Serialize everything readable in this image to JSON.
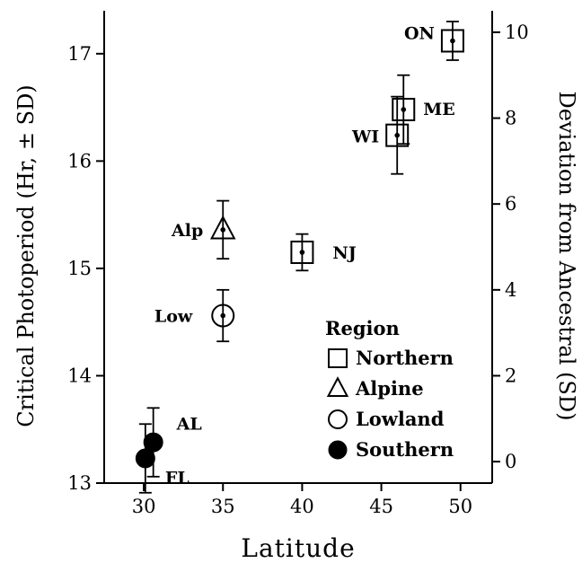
{
  "chart_data": {
    "type": "scatter",
    "xlabel": "Latitude",
    "ylabel": "Critical Photoperiod (Hr, ± SD)",
    "y2label": "Deviation from Ancestral (SD)",
    "xlim": [
      27.5,
      52
    ],
    "ylim": [
      13,
      17.4
    ],
    "y2lim": [
      -0.5,
      10.5
    ],
    "xticks": [
      "30",
      "35",
      "40",
      "45",
      "50"
    ],
    "yticks": [
      "13",
      "14",
      "15",
      "16",
      "17"
    ],
    "y2ticks": [
      "0",
      "2",
      "4",
      "6",
      "8",
      "10"
    ],
    "legend": {
      "title": "Region",
      "position": "lower-right",
      "entries": [
        {
          "name": "Northern",
          "marker": "square"
        },
        {
          "name": "Alpine",
          "marker": "triangle"
        },
        {
          "name": "Lowland",
          "marker": "circle-open"
        },
        {
          "name": "Southern",
          "marker": "circle-filled"
        }
      ]
    },
    "points": [
      {
        "label": "ON",
        "x": 49.5,
        "y": 17.12,
        "sd": 0.18,
        "region": "Northern"
      },
      {
        "label": "ME",
        "x": 46.4,
        "y": 16.48,
        "sd": 0.32,
        "region": "Northern"
      },
      {
        "label": "WI",
        "x": 46.0,
        "y": 16.24,
        "sd": 0.36,
        "region": "Northern"
      },
      {
        "label": "NJ",
        "x": 40.0,
        "y": 15.15,
        "sd": 0.17,
        "region": "Northern"
      },
      {
        "label": "Alp",
        "x": 35.0,
        "y": 15.36,
        "sd": 0.27,
        "region": "Alpine"
      },
      {
        "label": "Low",
        "x": 35.0,
        "y": 14.56,
        "sd": 0.24,
        "region": "Lowland"
      },
      {
        "label": "AL",
        "x": 30.6,
        "y": 13.38,
        "sd": 0.32,
        "region": "Southern"
      },
      {
        "label": "FL",
        "x": 30.1,
        "y": 13.23,
        "sd": 0.32,
        "region": "Southern"
      }
    ]
  }
}
